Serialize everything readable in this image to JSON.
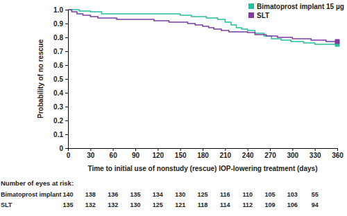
{
  "chart_data": {
    "type": "line",
    "x_label": "Time to initial use of nonstudy (rescue) IOP-lowering treatment (days)",
    "y_label": "Probability of no rescue",
    "xlim": [
      0,
      360
    ],
    "xticks": [
      0,
      30,
      60,
      90,
      120,
      150,
      180,
      210,
      240,
      270,
      300,
      330,
      360
    ],
    "ylim": [
      0,
      1
    ],
    "yticks": [
      0,
      0.1,
      0.2,
      0.3,
      0.4,
      0.5,
      0.6,
      0.7,
      0.8,
      0.9,
      {
        "value": 1,
        "label": "1.0"
      }
    ],
    "grid": false,
    "legend": "top-right",
    "line_style": "step",
    "series": [
      {
        "name": "Bimatoprost implant 15 µg",
        "color": "#26bfa0",
        "marker": "square",
        "x": [
          0,
          15,
          30,
          45,
          150,
          165,
          185,
          200,
          210,
          218,
          225,
          232,
          240,
          250,
          262,
          272,
          285,
          298,
          315,
          330,
          360
        ],
        "values": [
          1,
          0.99,
          0.985,
          0.97,
          0.96,
          0.95,
          0.94,
          0.93,
          0.91,
          0.89,
          0.87,
          0.86,
          0.85,
          0.83,
          0.81,
          0.79,
          0.78,
          0.77,
          0.76,
          0.75,
          0.75
        ]
      },
      {
        "name": "SLT",
        "color": "#7e3c9e",
        "marker": "square",
        "x": [
          0,
          5,
          12,
          20,
          30,
          40,
          65,
          115,
          135,
          160,
          170,
          180,
          188,
          195,
          205,
          215,
          240,
          250,
          265,
          280,
          300,
          325,
          345,
          360
        ],
        "values": [
          1,
          0.985,
          0.97,
          0.96,
          0.95,
          0.94,
          0.93,
          0.92,
          0.91,
          0.9,
          0.89,
          0.88,
          0.87,
          0.86,
          0.85,
          0.84,
          0.835,
          0.82,
          0.81,
          0.8,
          0.79,
          0.78,
          0.77,
          0.77
        ]
      }
    ],
    "at_risk": {
      "title": "Number of eyes at risk:",
      "x": [
        0,
        30,
        60,
        90,
        120,
        150,
        180,
        210,
        240,
        270,
        300,
        330
      ],
      "rows": [
        {
          "name": "Bimatoprost implant",
          "values": [
            140,
            138,
            136,
            135,
            134,
            130,
            125,
            116,
            110,
            105,
            103,
            55
          ]
        },
        {
          "name": "SLT",
          "values": [
            135,
            132,
            132,
            130,
            125,
            121,
            118,
            114,
            112,
            109,
            106,
            94
          ]
        }
      ]
    }
  }
}
